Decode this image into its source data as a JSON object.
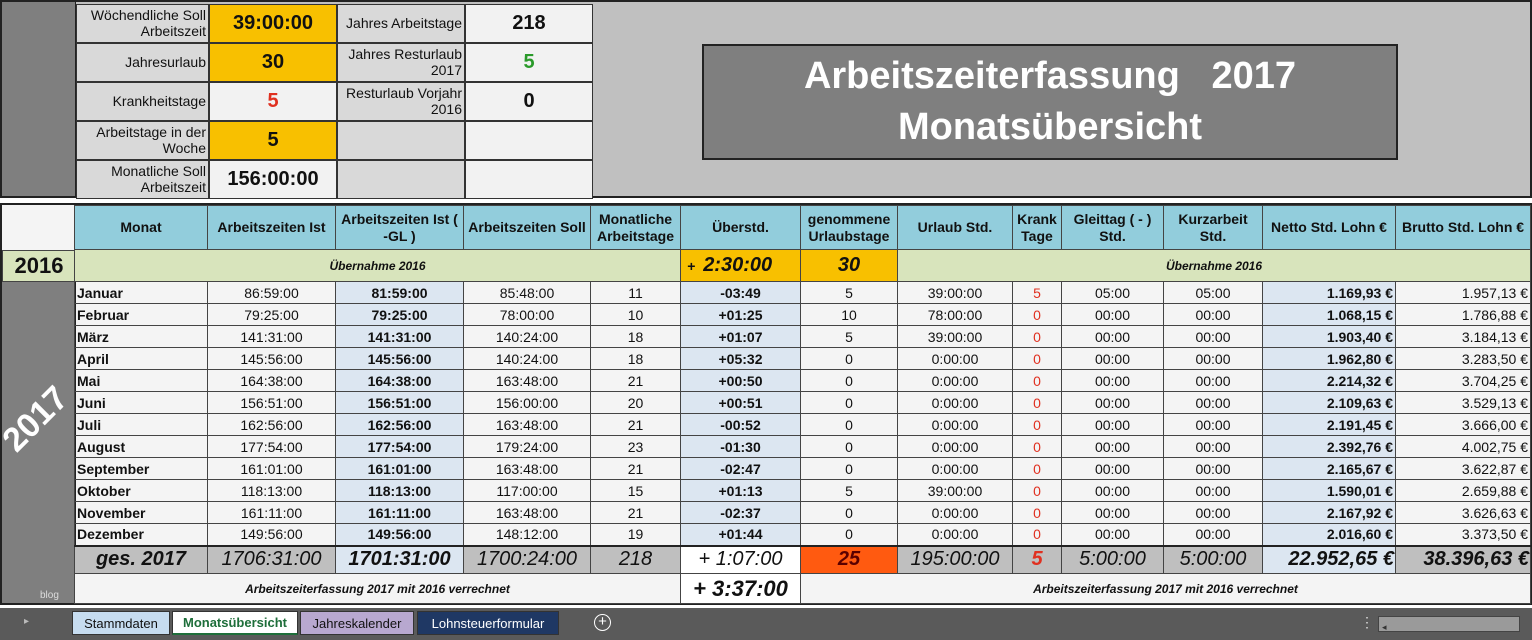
{
  "settings": {
    "rows": [
      {
        "l1": "Wöchendliche Soll Arbeitszeit",
        "v1": "39:00:00",
        "l2": "Jahres Arbeitstage",
        "v2": "218"
      },
      {
        "l1": "Jahresurlaub",
        "v1": "30",
        "l2": "Jahres Resturlaub 2017",
        "v2": "5"
      },
      {
        "l1": "Krankheitstage",
        "v1": "5",
        "l2": "Resturlaub Vorjahr 2016",
        "v2": "0"
      },
      {
        "l1": "Arbeitstage in der Woche",
        "v1": "5",
        "l2": "",
        "v2": ""
      },
      {
        "l1": "Monatliche Soll Arbeitszeit",
        "v1": "156:00:00",
        "l2": "",
        "v2": ""
      }
    ]
  },
  "title": {
    "line1": "Arbeitszeiterfassung   2017",
    "line2": "Monatsübersicht"
  },
  "headers": [
    "Monat",
    "Arbeitszeiten Ist",
    "Arbeitszeiten Ist ( -GL  )",
    "Arbeitszeiten Soll",
    "Monatliche Arbeitstage",
    "Überstd.",
    "genommene Urlaubstage",
    "Urlaub Std.",
    "Krank Tage",
    "Gleittag ( - ) Std.",
    "Kurzarbeit Std.",
    "Netto Std. Lohn €",
    "Brutto Std. Lohn €"
  ],
  "carry": {
    "year": "2016",
    "label": "Übernahme  2016",
    "sign": "+",
    "overtime": "2:30:00",
    "vacation": "30",
    "label2": "Übernahme  2016"
  },
  "side_year": "2017",
  "side_note": "blog",
  "months": [
    [
      "Januar",
      "86:59:00",
      "81:59:00",
      "85:48:00",
      "11",
      "-03:49",
      "5",
      "39:00:00",
      "5",
      "05:00",
      "05:00",
      "1.169,93 €",
      "1.957,13 €"
    ],
    [
      "Februar",
      "79:25:00",
      "79:25:00",
      "78:00:00",
      "10",
      "+01:25",
      "10",
      "78:00:00",
      "0",
      "00:00",
      "00:00",
      "1.068,15 €",
      "1.786,88 €"
    ],
    [
      "März",
      "141:31:00",
      "141:31:00",
      "140:24:00",
      "18",
      "+01:07",
      "5",
      "39:00:00",
      "0",
      "00:00",
      "00:00",
      "1.903,40 €",
      "3.184,13 €"
    ],
    [
      "April",
      "145:56:00",
      "145:56:00",
      "140:24:00",
      "18",
      "+05:32",
      "0",
      "0:00:00",
      "0",
      "00:00",
      "00:00",
      "1.962,80 €",
      "3.283,50 €"
    ],
    [
      "Mai",
      "164:38:00",
      "164:38:00",
      "163:48:00",
      "21",
      "+00:50",
      "0",
      "0:00:00",
      "0",
      "00:00",
      "00:00",
      "2.214,32 €",
      "3.704,25 €"
    ],
    [
      "Juni",
      "156:51:00",
      "156:51:00",
      "156:00:00",
      "20",
      "+00:51",
      "0",
      "0:00:00",
      "0",
      "00:00",
      "00:00",
      "2.109,63 €",
      "3.529,13 €"
    ],
    [
      "Juli",
      "162:56:00",
      "162:56:00",
      "163:48:00",
      "21",
      "-00:52",
      "0",
      "0:00:00",
      "0",
      "00:00",
      "00:00",
      "2.191,45 €",
      "3.666,00 €"
    ],
    [
      "August",
      "177:54:00",
      "177:54:00",
      "179:24:00",
      "23",
      "-01:30",
      "0",
      "0:00:00",
      "0",
      "00:00",
      "00:00",
      "2.392,76 €",
      "4.002,75 €"
    ],
    [
      "September",
      "161:01:00",
      "161:01:00",
      "163:48:00",
      "21",
      "-02:47",
      "0",
      "0:00:00",
      "0",
      "00:00",
      "00:00",
      "2.165,67 €",
      "3.622,87 €"
    ],
    [
      "Oktober",
      "118:13:00",
      "118:13:00",
      "117:00:00",
      "15",
      "+01:13",
      "5",
      "39:00:00",
      "0",
      "00:00",
      "00:00",
      "1.590,01 €",
      "2.659,88 €"
    ],
    [
      "November",
      "161:11:00",
      "161:11:00",
      "163:48:00",
      "21",
      "-02:37",
      "0",
      "0:00:00",
      "0",
      "00:00",
      "00:00",
      "2.167,92 €",
      "3.626,63 €"
    ],
    [
      "Dezember",
      "149:56:00",
      "149:56:00",
      "148:12:00",
      "19",
      "+01:44",
      "0",
      "0:00:00",
      "0",
      "00:00",
      "00:00",
      "2.016,60 €",
      "3.373,50 €"
    ]
  ],
  "total": [
    "ges. 2017",
    "1706:31:00",
    "1701:31:00",
    "1700:24:00",
    "218",
    "+  1:07:00",
    "25",
    "195:00:00",
    "5",
    "5:00:00",
    "5:00:00",
    "22.952,65 €",
    "38.396,63 €"
  ],
  "footer": {
    "note": "Arbeitszeiterfassung 2017 mit 2016 verrechnet",
    "result": "+  3:37:00",
    "note2": "Arbeitszeiterfassung 2017 mit 2016 verrechnet"
  },
  "tabs": [
    "Stammdaten",
    "Monatsübersicht",
    "Jahreskalender",
    "Lohnsteuerformular"
  ],
  "colors": {
    "orange": "#f8c000",
    "header": "#92cddc",
    "carry": "#d8e4bc",
    "vacation_total": "#ff5a10",
    "red": "#e03020",
    "green": "#2a9a2a"
  }
}
